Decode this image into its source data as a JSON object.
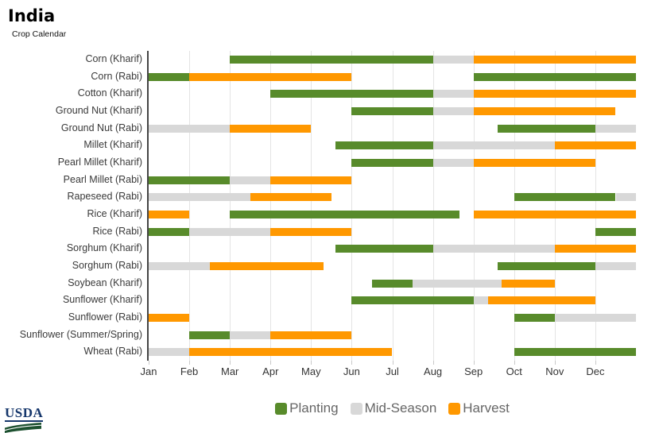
{
  "header": {
    "title": "India",
    "subtitle": "Crop Calendar"
  },
  "legend": [
    {
      "label": "Planting",
      "color": "#588b2b"
    },
    {
      "label": "Mid-Season",
      "color": "#d8d8d8"
    },
    {
      "label": "Harvest",
      "color": "#ff9800"
    }
  ],
  "footer": {
    "logo_text": "USDA"
  },
  "chart_data": {
    "type": "bar",
    "subtype": "gantt-crop-calendar",
    "title": "India",
    "subtitle": "Crop Calendar",
    "xlabel": "",
    "ylabel": "",
    "x_axis": {
      "unit": "month",
      "range": [
        0,
        12
      ],
      "labels": [
        "Jan",
        "Feb",
        "Mar",
        "Apr",
        "May",
        "Jun",
        "Jul",
        "Aug",
        "Sep",
        "Oct",
        "Nov",
        "Dec"
      ]
    },
    "grid": "vertical-only",
    "legend_position": "bottom",
    "phase_colors": {
      "Planting": "#588b2b",
      "Mid-Season": "#d8d8d8",
      "Harvest": "#ff9800"
    },
    "rows": [
      {
        "crop": "Corn (Kharif)",
        "segments": [
          {
            "phase": "Planting",
            "start": 2,
            "end": 7
          },
          {
            "phase": "Mid-Season",
            "start": 7,
            "end": 8
          },
          {
            "phase": "Harvest",
            "start": 8,
            "end": 12
          }
        ]
      },
      {
        "crop": "Corn (Rabi)",
        "segments": [
          {
            "phase": "Planting",
            "start": 0,
            "end": 1
          },
          {
            "phase": "Harvest",
            "start": 1,
            "end": 5
          },
          {
            "phase": "Planting",
            "start": 8,
            "end": 12
          }
        ]
      },
      {
        "crop": "Cotton (Kharif)",
        "segments": [
          {
            "phase": "Planting",
            "start": 3,
            "end": 7
          },
          {
            "phase": "Mid-Season",
            "start": 7,
            "end": 8
          },
          {
            "phase": "Harvest",
            "start": 8,
            "end": 12
          }
        ]
      },
      {
        "crop": "Ground Nut (Kharif)",
        "segments": [
          {
            "phase": "Planting",
            "start": 5,
            "end": 7
          },
          {
            "phase": "Mid-Season",
            "start": 7,
            "end": 8
          },
          {
            "phase": "Harvest",
            "start": 8,
            "end": 11.5
          }
        ]
      },
      {
        "crop": "Ground Nut (Rabi)",
        "segments": [
          {
            "phase": "Mid-Season",
            "start": 0,
            "end": 2
          },
          {
            "phase": "Harvest",
            "start": 2,
            "end": 4
          },
          {
            "phase": "Planting",
            "start": 8.6,
            "end": 11
          },
          {
            "phase": "Mid-Season",
            "start": 11,
            "end": 12
          }
        ]
      },
      {
        "crop": "Millet (Kharif)",
        "segments": [
          {
            "phase": "Planting",
            "start": 4.6,
            "end": 7
          },
          {
            "phase": "Mid-Season",
            "start": 7,
            "end": 10
          },
          {
            "phase": "Harvest",
            "start": 10,
            "end": 12
          }
        ]
      },
      {
        "crop": "Pearl Millet (Kharif)",
        "segments": [
          {
            "phase": "Planting",
            "start": 5,
            "end": 7
          },
          {
            "phase": "Mid-Season",
            "start": 7,
            "end": 8
          },
          {
            "phase": "Harvest",
            "start": 8,
            "end": 11
          }
        ]
      },
      {
        "crop": "Pearl Millet (Rabi)",
        "segments": [
          {
            "phase": "Planting",
            "start": 0,
            "end": 2
          },
          {
            "phase": "Mid-Season",
            "start": 2,
            "end": 3
          },
          {
            "phase": "Harvest",
            "start": 3,
            "end": 5
          }
        ]
      },
      {
        "crop": "Rapeseed (Rabi)",
        "segments": [
          {
            "phase": "Mid-Season",
            "start": 0,
            "end": 2.5
          },
          {
            "phase": "Harvest",
            "start": 2.5,
            "end": 4.5
          },
          {
            "phase": "Planting",
            "start": 9,
            "end": 11.5
          },
          {
            "phase": "Mid-Season",
            "start": 11.5,
            "end": 12
          }
        ]
      },
      {
        "crop": "Rice (Kharif)",
        "segments": [
          {
            "phase": "Harvest",
            "start": 0,
            "end": 1
          },
          {
            "phase": "Planting",
            "start": 2,
            "end": 7.65
          },
          {
            "phase": "Harvest",
            "start": 8,
            "end": 12
          }
        ]
      },
      {
        "crop": "Rice (Rabi)",
        "segments": [
          {
            "phase": "Planting",
            "start": 0,
            "end": 1
          },
          {
            "phase": "Mid-Season",
            "start": 1,
            "end": 3
          },
          {
            "phase": "Harvest",
            "start": 3,
            "end": 5
          },
          {
            "phase": "Planting",
            "start": 11,
            "end": 12
          }
        ]
      },
      {
        "crop": "Sorghum (Kharif)",
        "segments": [
          {
            "phase": "Planting",
            "start": 4.6,
            "end": 7
          },
          {
            "phase": "Mid-Season",
            "start": 7,
            "end": 10
          },
          {
            "phase": "Harvest",
            "start": 10,
            "end": 12
          }
        ]
      },
      {
        "crop": "Sorghum (Rabi)",
        "segments": [
          {
            "phase": "Mid-Season",
            "start": 0,
            "end": 1.5
          },
          {
            "phase": "Harvest",
            "start": 1.5,
            "end": 4.3
          },
          {
            "phase": "Planting",
            "start": 8.6,
            "end": 11
          },
          {
            "phase": "Mid-Season",
            "start": 11,
            "end": 12
          }
        ]
      },
      {
        "crop": "Soybean (Kharif)",
        "segments": [
          {
            "phase": "Planting",
            "start": 5.5,
            "end": 6.5
          },
          {
            "phase": "Mid-Season",
            "start": 6.5,
            "end": 8.7
          },
          {
            "phase": "Harvest",
            "start": 8.7,
            "end": 10
          }
        ]
      },
      {
        "crop": "Sunflower (Kharif)",
        "segments": [
          {
            "phase": "Planting",
            "start": 5,
            "end": 8
          },
          {
            "phase": "Mid-Season",
            "start": 8,
            "end": 8.35
          },
          {
            "phase": "Harvest",
            "start": 8.35,
            "end": 11
          }
        ]
      },
      {
        "crop": "Sunflower (Rabi)",
        "segments": [
          {
            "phase": "Harvest",
            "start": 0,
            "end": 1
          },
          {
            "phase": "Planting",
            "start": 9,
            "end": 10
          },
          {
            "phase": "Mid-Season",
            "start": 10,
            "end": 12
          }
        ]
      },
      {
        "crop": "Sunflower (Summer/Spring)",
        "segments": [
          {
            "phase": "Planting",
            "start": 1,
            "end": 2
          },
          {
            "phase": "Mid-Season",
            "start": 2,
            "end": 3
          },
          {
            "phase": "Harvest",
            "start": 3,
            "end": 5
          }
        ]
      },
      {
        "crop": "Wheat (Rabi)",
        "segments": [
          {
            "phase": "Mid-Season",
            "start": 0,
            "end": 1
          },
          {
            "phase": "Harvest",
            "start": 1,
            "end": 6
          },
          {
            "phase": "Planting",
            "start": 9,
            "end": 12
          }
        ]
      }
    ]
  }
}
